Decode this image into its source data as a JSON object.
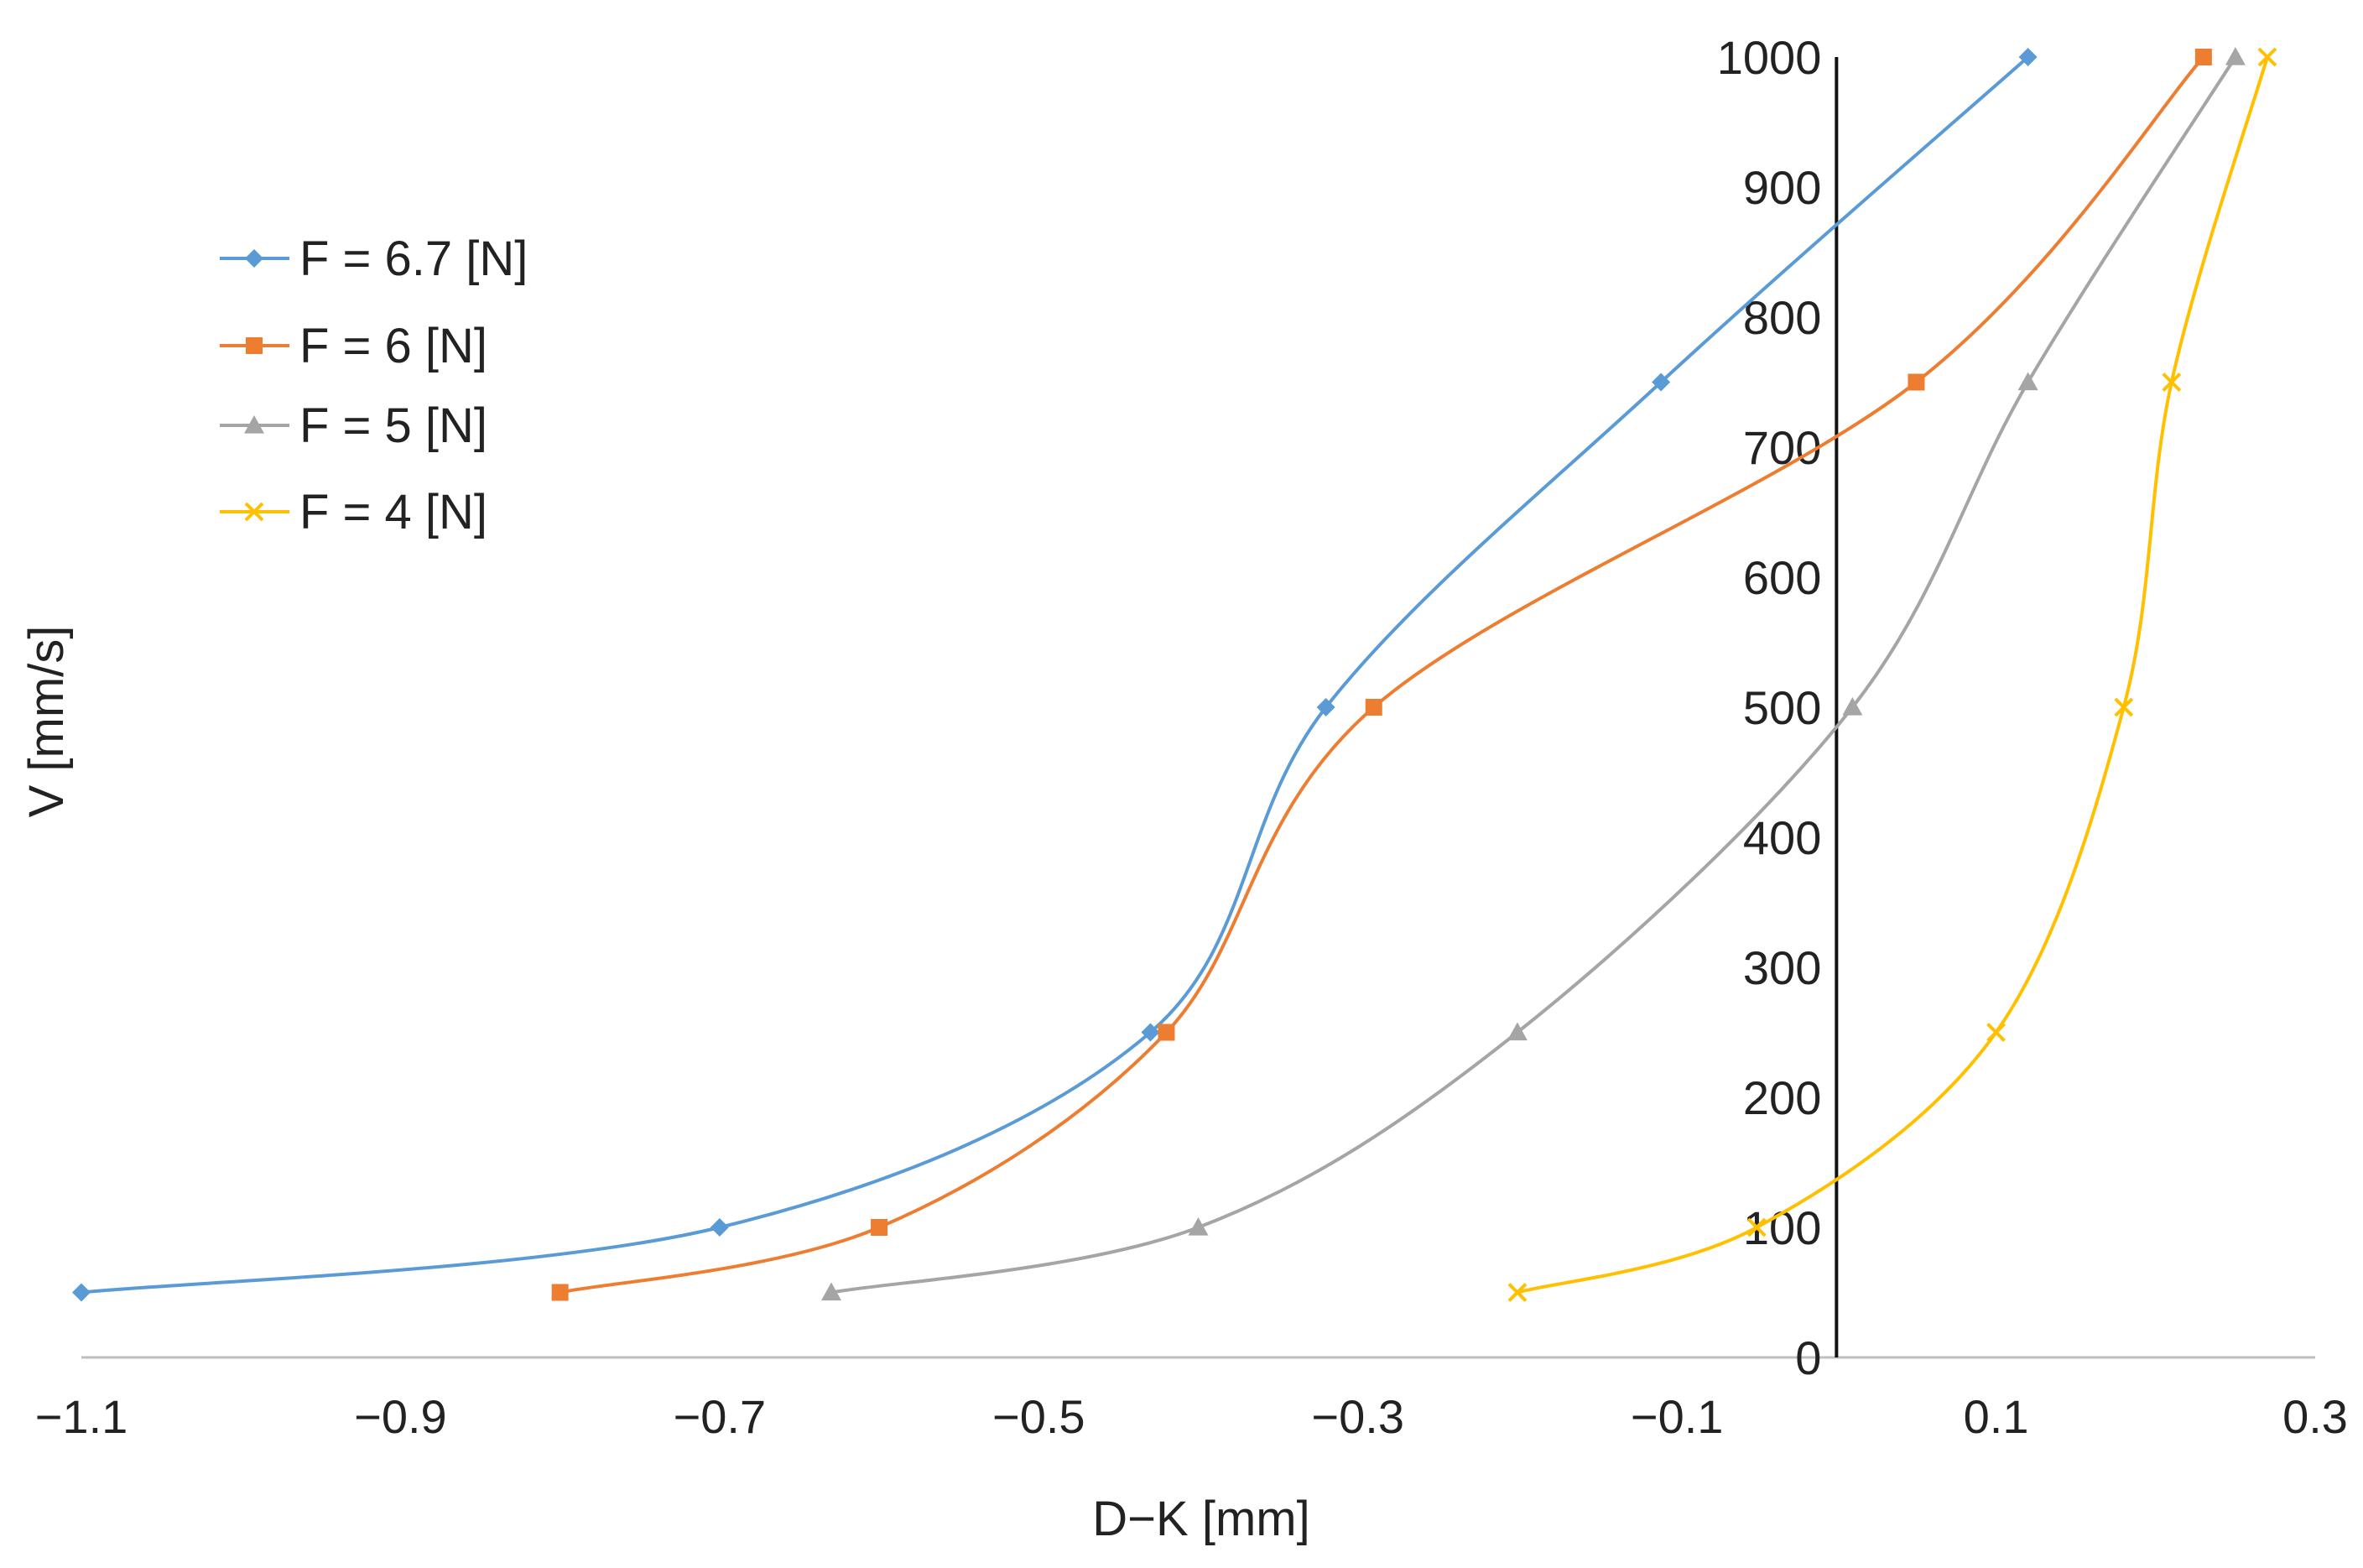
{
  "chart_data": {
    "type": "line",
    "title": "",
    "xlabel": "D−K [mm]",
    "ylabel": "V [mm/s]",
    "xlim": [
      -1.1,
      0.3
    ],
    "ylim": [
      0,
      1000
    ],
    "x_ticks": [
      -1.1,
      -0.9,
      -0.7,
      -0.5,
      -0.3,
      -0.1,
      0.1,
      0.3
    ],
    "x_tick_labels": [
      "−1.1",
      "−0.9",
      "−0.7",
      "−0.5",
      "−0.3",
      "−0.1",
      "0.1",
      "0.3"
    ],
    "y_ticks": [
      0,
      100,
      200,
      300,
      400,
      500,
      600,
      700,
      800,
      900,
      1000
    ],
    "y_tick_labels": [
      "0",
      "100",
      "200",
      "300",
      "400",
      "500",
      "600",
      "700",
      "800",
      "900",
      "1000"
    ],
    "y_axis_at_x": 0,
    "grid": false,
    "legend_position": "top-left",
    "series": [
      {
        "name": "F = 6.7 [N]",
        "color": "#5B9BD5",
        "marker": "diamond",
        "x": [
          -1.1,
          -0.7,
          -0.43,
          -0.32,
          -0.11,
          0.12
        ],
        "y": [
          50,
          100,
          250,
          500,
          750,
          1000
        ]
      },
      {
        "name": "F = 6 [N]",
        "color": "#ED7D31",
        "marker": "square",
        "x": [
          -0.8,
          -0.6,
          -0.42,
          -0.29,
          0.05,
          0.23
        ],
        "y": [
          50,
          100,
          250,
          500,
          750,
          1000
        ]
      },
      {
        "name": "F = 5 [N]",
        "color": "#A5A5A5",
        "marker": "triangle",
        "x": [
          -0.63,
          -0.4,
          -0.2,
          0.01,
          0.12,
          0.25
        ],
        "y": [
          50,
          100,
          250,
          500,
          750,
          1000
        ]
      },
      {
        "name": "F = 4 [N]",
        "color": "#FFC000",
        "marker": "x",
        "x": [
          -0.2,
          -0.05,
          0.1,
          0.18,
          0.21,
          0.27
        ],
        "y": [
          50,
          100,
          250,
          500,
          750,
          1000
        ]
      }
    ]
  }
}
